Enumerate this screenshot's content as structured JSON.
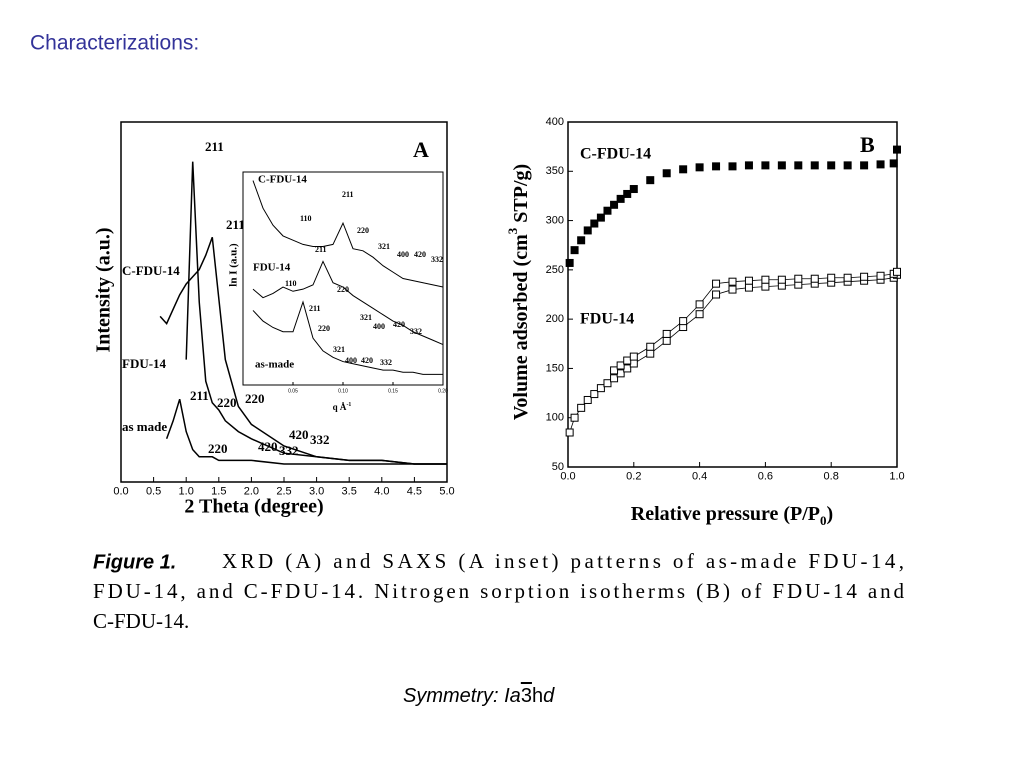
{
  "title": "Characterizations:",
  "chart_data": [
    {
      "type": "line",
      "x_label": "2 Theta (degree)",
      "y_label": "Intensity (a.u.)",
      "xlim": [
        0,
        5
      ],
      "ylim": [
        0,
        100
      ],
      "xticks": [
        {
          "value": 0,
          "label": "0.0"
        },
        0.5,
        {
          "value": 1,
          "label": "1.0"
        },
        1.5,
        {
          "value": 2,
          "label": "2.0"
        },
        2.5,
        {
          "value": 3,
          "label": "3.0"
        },
        3.5,
        {
          "value": 4,
          "label": "4.0"
        },
        4.5,
        {
          "value": 5,
          "label": "5.0"
        }
      ],
      "x": [
        0.6,
        0.7,
        0.8,
        0.9,
        1.0,
        1.1,
        1.2,
        1.3,
        1.4,
        1.5,
        1.6,
        1.8,
        2.0,
        2.5,
        3.0,
        3.5,
        4.0,
        4.5,
        5.0
      ],
      "series": [
        {
          "color": "#000000",
          "values": [
            46,
            44,
            48,
            52,
            55,
            57,
            59,
            63,
            68,
            51,
            34,
            21,
            16,
            10,
            7,
            6,
            6,
            5,
            5
          ]
        },
        {
          "color": "#000000",
          "values": [
            null,
            null,
            null,
            null,
            34,
            89,
            50,
            28,
            22,
            20,
            17,
            14,
            12,
            8,
            7,
            6,
            6,
            5,
            5
          ]
        },
        {
          "color": "#000000",
          "values": [
            null,
            12,
            17,
            23,
            14,
            9,
            7,
            7,
            7,
            6,
            6,
            6,
            6,
            5,
            5,
            5,
            5,
            5,
            5
          ]
        }
      ],
      "annotations": [
        "211",
        "211",
        "C-FDU-14",
        "FDU-14",
        "as made",
        "211",
        "220",
        "220",
        "220",
        "420",
        "332",
        "420",
        "332",
        "A"
      ]
    },
    {
      "type": "scatter",
      "x_label": [
        "Relative pressure (P/P",
        "0",
        ")"
      ],
      "y_label": [
        "Volume adsorbed (cm",
        "3",
        " STP/g)"
      ],
      "xlim": [
        0,
        1
      ],
      "ylim": [
        50,
        400
      ],
      "xticks": [
        {
          "value": 0,
          "label": "0.0"
        },
        0.2,
        0.4,
        0.6,
        0.8,
        {
          "value": 1,
          "label": "1.0"
        }
      ],
      "yticks": [
        50,
        100,
        150,
        200,
        250,
        300,
        350,
        400
      ],
      "x": [
        0.005,
        0.02,
        0.04,
        0.06,
        0.08,
        0.1,
        0.12,
        0.14,
        0.16,
        0.18,
        0.2,
        0.25,
        0.3,
        0.35,
        0.4,
        0.45,
        0.5,
        0.55,
        0.6,
        0.65,
        0.7,
        0.75,
        0.8,
        0.85,
        0.9,
        0.95,
        0.99,
        1.0
      ],
      "series": [
        {
          "name": "C-FDU-14",
          "color": "#000000",
          "marker": "filled-square",
          "line": false,
          "values": [
            257,
            270,
            280,
            290,
            297,
            303,
            310,
            316,
            322,
            327,
            332,
            341,
            348,
            352,
            354,
            355,
            355,
            356,
            356,
            356,
            356,
            356,
            356,
            356,
            356,
            357,
            358,
            372
          ]
        },
        {
          "name": "FDU-14",
          "color": "#000000",
          "marker": "open-square",
          "line": true,
          "values": [
            85,
            100,
            110,
            118,
            124,
            130,
            135,
            140,
            145,
            150,
            155,
            165,
            178,
            192,
            205,
            225,
            230,
            232,
            233,
            234,
            235,
            236,
            237,
            238,
            239,
            240,
            242,
            245
          ]
        },
        {
          "color": "#000000",
          "marker": "open-square",
          "line": true,
          "values": [
            null,
            null,
            null,
            null,
            null,
            null,
            null,
            148,
            153,
            158,
            162,
            172,
            185,
            198,
            215,
            236,
            238,
            239,
            240,
            240,
            241,
            241,
            242,
            242,
            243,
            244,
            246,
            248
          ]
        }
      ],
      "annotations": [
        "B"
      ]
    },
    {
      "type": "line",
      "x_label": [
        "q  Å",
        "-1"
      ],
      "y_label": "ln I (a.u.)",
      "xlim": [
        0,
        0.2
      ],
      "ylim": [
        0,
        10
      ],
      "xticks": [
        0.05,
        {
          "value": 0.1,
          "label": "0.10"
        },
        0.15,
        {
          "value": 0.2,
          "label": "0.20"
        }
      ],
      "x": [
        0.01,
        0.02,
        0.03,
        0.04,
        0.05,
        0.06,
        0.07,
        0.08,
        0.09,
        0.1,
        0.11,
        0.12,
        0.13,
        0.14,
        0.15,
        0.16,
        0.17,
        0.18,
        0.19,
        0.2
      ],
      "series": [
        {
          "color": "#000000",
          "values": [
            9.6,
            8.3,
            7.5,
            7.0,
            6.8,
            6.6,
            6.5,
            6.5,
            6.6,
            7.6,
            6.4,
            6.3,
            6.0,
            5.6,
            5.3,
            5.0,
            4.9,
            4.8,
            4.7,
            4.6
          ]
        },
        {
          "color": "#000000",
          "values": [
            4.5,
            4.1,
            4.3,
            4.6,
            4.4,
            4.5,
            4.7,
            5.8,
            4.8,
            4.6,
            4.2,
            3.9,
            3.6,
            3.3,
            3.0,
            2.8,
            2.5,
            2.3,
            2.1,
            1.9
          ]
        },
        {
          "color": "#000000",
          "values": [
            3.5,
            3.0,
            2.7,
            2.5,
            2.5,
            3.9,
            2.2,
            1.6,
            1.3,
            1.1,
            1.0,
            0.9,
            0.8,
            0.7,
            0.7,
            0.6,
            0.6,
            0.5,
            0.5,
            0.5
          ]
        }
      ],
      "annotations": [
        "C-FDU-14",
        "110",
        "211",
        "220",
        "321",
        "400",
        "420",
        "332",
        "FDU-14",
        "110",
        "211",
        "220",
        "321",
        "400",
        "420",
        "332",
        "211",
        "220",
        "321",
        "400",
        "420",
        "332",
        "as-made"
      ]
    }
  ],
  "caption": {
    "label": "Figure 1.",
    "lines": [
      "XRD (A) and SAXS (A inset) patterns of as-made FDU-14,",
      "FDU-14, and C-FDU-14. Nitrogen sorption isotherms (B) of FDU-14 and",
      "C-FDU-14."
    ]
  },
  "footer": [
    "Symmetry: ",
    "Ia",
    "3",
    "h",
    "d"
  ]
}
